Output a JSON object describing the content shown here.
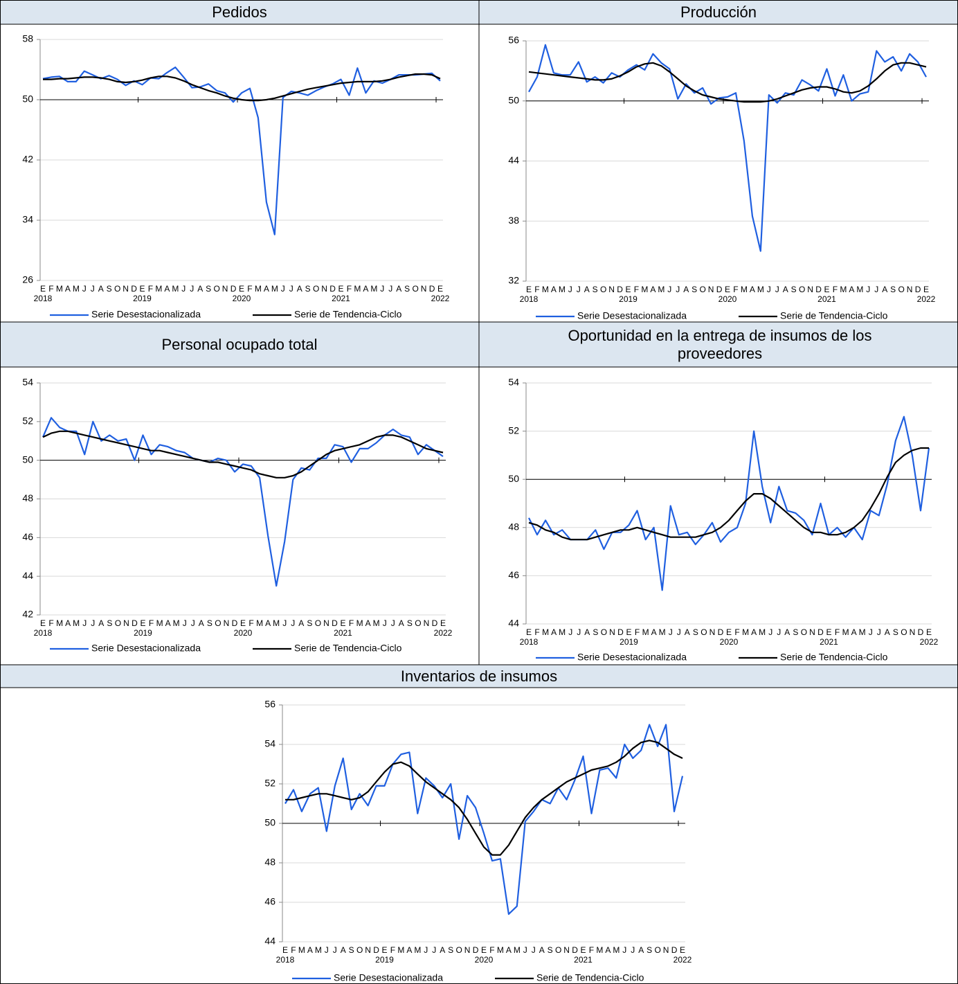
{
  "chart_data": [
    {
      "type": "line",
      "title": "Pedidos",
      "categories": [
        "E",
        "F",
        "M",
        "A",
        "M",
        "J",
        "J",
        "A",
        "S",
        "O",
        "N",
        "D",
        "E",
        "F",
        "M",
        "A",
        "M",
        "J",
        "J",
        "A",
        "S",
        "O",
        "N",
        "D",
        "E",
        "F",
        "M",
        "A",
        "M",
        "J",
        "J",
        "A",
        "S",
        "O",
        "N",
        "D",
        "E",
        "F",
        "M",
        "A",
        "M",
        "J",
        "J",
        "A",
        "S",
        "O",
        "N",
        "D",
        "E"
      ],
      "years": [
        "2018",
        "2019",
        "2020",
        "2021",
        "2022"
      ],
      "ylim": [
        26,
        58
      ],
      "yticks": [
        26,
        34,
        42,
        50,
        58
      ],
      "axis_at": 50,
      "grid": true,
      "series": [
        {
          "name": "Serie Desestacionalizada",
          "color": "#1f5fe0",
          "values": [
            52.8,
            53.0,
            53.1,
            52.4,
            52.4,
            53.8,
            53.3,
            52.8,
            53.2,
            52.7,
            51.9,
            52.5,
            52.0,
            52.9,
            52.8,
            53.6,
            54.3,
            53.0,
            51.6,
            51.7,
            52.1,
            51.2,
            50.9,
            49.7,
            50.9,
            51.5,
            47.6,
            36.4,
            32.1,
            50.3,
            51.1,
            50.9,
            50.6,
            51.2,
            51.7,
            52.1,
            52.7,
            50.6,
            54.2,
            50.9,
            52.5,
            52.2,
            52.7,
            53.3,
            53.3,
            53.3,
            53.4,
            53.5,
            52.5
          ]
        },
        {
          "name": "Serie de Tendencia-Ciclo",
          "color": "#000000",
          "values": [
            52.7,
            52.7,
            52.8,
            52.8,
            52.9,
            53.0,
            53.0,
            52.9,
            52.7,
            52.4,
            52.3,
            52.4,
            52.6,
            52.9,
            53.1,
            53.1,
            52.9,
            52.5,
            52.0,
            51.6,
            51.2,
            50.9,
            50.5,
            50.2,
            50.0,
            49.9,
            49.9,
            50.0,
            50.2,
            50.5,
            50.8,
            51.1,
            51.4,
            51.6,
            51.8,
            52.0,
            52.2,
            52.3,
            52.4,
            52.4,
            52.4,
            52.5,
            52.7,
            53.0,
            53.2,
            53.4,
            53.4,
            53.3,
            52.8
          ]
        }
      ]
    },
    {
      "type": "line",
      "title": "Producción",
      "categories": [
        "E",
        "F",
        "M",
        "A",
        "M",
        "J",
        "J",
        "A",
        "S",
        "O",
        "N",
        "D",
        "E",
        "F",
        "M",
        "A",
        "M",
        "J",
        "J",
        "A",
        "S",
        "O",
        "N",
        "D",
        "E",
        "F",
        "M",
        "A",
        "M",
        "J",
        "J",
        "A",
        "S",
        "O",
        "N",
        "D",
        "E",
        "F",
        "M",
        "A",
        "M",
        "J",
        "J",
        "A",
        "S",
        "O",
        "N",
        "D",
        "E"
      ],
      "years": [
        "2018",
        "2019",
        "2020",
        "2021",
        "2022"
      ],
      "ylim": [
        32,
        56
      ],
      "yticks": [
        32,
        38,
        44,
        50,
        56
      ],
      "axis_at": 50,
      "grid": true,
      "series": [
        {
          "name": "Serie Desestacionalizada",
          "color": "#1f5fe0",
          "values": [
            50.9,
            52.4,
            55.6,
            52.8,
            52.6,
            52.6,
            53.9,
            51.9,
            52.4,
            51.8,
            52.8,
            52.4,
            53.1,
            53.6,
            53.1,
            54.7,
            53.8,
            53.2,
            50.2,
            51.7,
            50.8,
            51.3,
            49.7,
            50.3,
            50.4,
            50.8,
            46.0,
            38.5,
            35.0,
            50.6,
            49.8,
            50.8,
            50.6,
            52.1,
            51.6,
            51.0,
            53.2,
            50.5,
            52.6,
            50.0,
            50.7,
            50.9,
            55.0,
            53.9,
            54.4,
            53.0,
            54.7,
            53.9,
            52.4
          ]
        },
        {
          "name": "Serie de Tendencia-Ciclo",
          "color": "#000000",
          "values": [
            52.9,
            52.8,
            52.7,
            52.6,
            52.5,
            52.4,
            52.3,
            52.2,
            52.1,
            52.1,
            52.2,
            52.5,
            52.9,
            53.4,
            53.7,
            53.8,
            53.5,
            52.9,
            52.2,
            51.5,
            51.0,
            50.6,
            50.4,
            50.2,
            50.1,
            50.0,
            49.9,
            49.9,
            49.9,
            50.0,
            50.2,
            50.5,
            50.8,
            51.1,
            51.3,
            51.4,
            51.4,
            51.2,
            50.9,
            50.8,
            51.0,
            51.5,
            52.2,
            53.0,
            53.6,
            53.8,
            53.8,
            53.6,
            53.4
          ]
        }
      ]
    },
    {
      "type": "line",
      "title": "Personal ocupado total",
      "categories": [
        "E",
        "F",
        "M",
        "A",
        "M",
        "J",
        "J",
        "A",
        "S",
        "O",
        "N",
        "D",
        "E",
        "F",
        "M",
        "A",
        "M",
        "J",
        "J",
        "A",
        "S",
        "O",
        "N",
        "D",
        "E",
        "F",
        "M",
        "A",
        "M",
        "J",
        "J",
        "A",
        "S",
        "O",
        "N",
        "D",
        "E",
        "F",
        "M",
        "A",
        "M",
        "J",
        "J",
        "A",
        "S",
        "O",
        "N",
        "D",
        "E"
      ],
      "years": [
        "2018",
        "2019",
        "2020",
        "2021",
        "2022"
      ],
      "ylim": [
        42,
        54
      ],
      "yticks": [
        42,
        44,
        46,
        48,
        50,
        52,
        54
      ],
      "axis_at": 50,
      "grid": true,
      "series": [
        {
          "name": "Serie Desestacionalizada",
          "color": "#1f5fe0",
          "values": [
            51.2,
            52.2,
            51.7,
            51.5,
            51.5,
            50.3,
            52.0,
            51.0,
            51.3,
            51.0,
            51.1,
            50.0,
            51.3,
            50.3,
            50.8,
            50.7,
            50.5,
            50.4,
            50.1,
            50.0,
            49.9,
            50.1,
            50.0,
            49.4,
            49.8,
            49.7,
            49.1,
            46.1,
            43.5,
            45.8,
            49.0,
            49.6,
            49.5,
            50.1,
            50.1,
            50.8,
            50.7,
            49.9,
            50.6,
            50.6,
            50.9,
            51.3,
            51.6,
            51.3,
            51.2,
            50.3,
            50.8,
            50.5,
            50.2
          ]
        },
        {
          "name": "Serie de Tendencia-Ciclo",
          "color": "#000000",
          "values": [
            51.2,
            51.4,
            51.5,
            51.5,
            51.4,
            51.3,
            51.2,
            51.1,
            51.0,
            50.9,
            50.8,
            50.7,
            50.6,
            50.5,
            50.5,
            50.4,
            50.3,
            50.2,
            50.1,
            50.0,
            49.9,
            49.9,
            49.8,
            49.7,
            49.6,
            49.5,
            49.3,
            49.2,
            49.1,
            49.1,
            49.2,
            49.4,
            49.7,
            50.0,
            50.3,
            50.5,
            50.6,
            50.7,
            50.8,
            51.0,
            51.2,
            51.3,
            51.3,
            51.2,
            51.0,
            50.8,
            50.6,
            50.5,
            50.4
          ]
        }
      ]
    },
    {
      "type": "line",
      "title": "Oportunidad en la entrega de insumos de los proveedores",
      "categories": [
        "E",
        "F",
        "M",
        "A",
        "M",
        "J",
        "J",
        "A",
        "S",
        "O",
        "N",
        "D",
        "E",
        "F",
        "M",
        "A",
        "M",
        "J",
        "J",
        "A",
        "S",
        "O",
        "N",
        "D",
        "E",
        "F",
        "M",
        "A",
        "M",
        "J",
        "J",
        "A",
        "S",
        "O",
        "N",
        "D",
        "E",
        "F",
        "M",
        "A",
        "M",
        "J",
        "J",
        "A",
        "S",
        "O",
        "N",
        "D",
        "E"
      ],
      "years": [
        "2018",
        "2019",
        "2020",
        "2021",
        "2022"
      ],
      "ylim": [
        44,
        54
      ],
      "yticks": [
        44,
        46,
        48,
        50,
        52,
        54
      ],
      "axis_at": 50,
      "grid": true,
      "series": [
        {
          "name": "Serie Desestacionalizada",
          "color": "#1f5fe0",
          "values": [
            48.4,
            47.7,
            48.3,
            47.7,
            47.9,
            47.5,
            47.5,
            47.5,
            47.9,
            47.1,
            47.8,
            47.8,
            48.1,
            48.7,
            47.5,
            48.0,
            45.4,
            48.9,
            47.7,
            47.8,
            47.3,
            47.7,
            48.2,
            47.4,
            47.8,
            48.0,
            49.0,
            52.0,
            49.7,
            48.2,
            49.7,
            48.7,
            48.6,
            48.3,
            47.7,
            49.0,
            47.7,
            48.0,
            47.6,
            48.0,
            47.5,
            48.7,
            48.5,
            49.8,
            51.6,
            52.6,
            51.0,
            48.7,
            51.3
          ]
        },
        {
          "name": "Serie de Tendencia-Ciclo",
          "color": "#000000",
          "values": [
            48.2,
            48.1,
            47.9,
            47.8,
            47.6,
            47.5,
            47.5,
            47.5,
            47.6,
            47.7,
            47.8,
            47.9,
            47.9,
            48.0,
            47.9,
            47.8,
            47.7,
            47.6,
            47.6,
            47.6,
            47.6,
            47.7,
            47.8,
            48.0,
            48.3,
            48.7,
            49.1,
            49.4,
            49.4,
            49.2,
            48.9,
            48.6,
            48.3,
            48.0,
            47.8,
            47.8,
            47.7,
            47.7,
            47.8,
            48.0,
            48.3,
            48.8,
            49.4,
            50.1,
            50.7,
            51.0,
            51.2,
            51.3,
            51.3
          ]
        }
      ]
    },
    {
      "type": "line",
      "title": "Inventarios de insumos",
      "categories": [
        "E",
        "F",
        "M",
        "A",
        "M",
        "J",
        "J",
        "A",
        "S",
        "O",
        "N",
        "D",
        "E",
        "F",
        "M",
        "A",
        "M",
        "J",
        "J",
        "A",
        "S",
        "O",
        "N",
        "D",
        "E",
        "F",
        "M",
        "A",
        "M",
        "J",
        "J",
        "A",
        "S",
        "O",
        "N",
        "D",
        "E",
        "F",
        "M",
        "A",
        "M",
        "J",
        "J",
        "A",
        "S",
        "O",
        "N",
        "D",
        "E"
      ],
      "years": [
        "2018",
        "2019",
        "2020",
        "2021",
        "2022"
      ],
      "ylim": [
        44,
        56
      ],
      "yticks": [
        44,
        46,
        48,
        50,
        52,
        54,
        56
      ],
      "axis_at": 50,
      "grid": true,
      "series": [
        {
          "name": "Serie Desestacionalizada",
          "color": "#1f5fe0",
          "values": [
            51.0,
            51.7,
            50.6,
            51.5,
            51.8,
            49.6,
            51.9,
            53.3,
            50.7,
            51.5,
            50.9,
            51.9,
            51.9,
            53.0,
            53.5,
            53.6,
            50.5,
            52.3,
            51.9,
            51.3,
            52.0,
            49.2,
            51.4,
            50.8,
            49.5,
            48.1,
            48.2,
            45.4,
            45.8,
            50.1,
            50.6,
            51.2,
            51.0,
            51.8,
            51.2,
            52.2,
            53.4,
            50.5,
            52.7,
            52.8,
            52.3,
            54.0,
            53.3,
            53.7,
            55.0,
            53.9,
            55.0,
            50.6,
            52.4
          ]
        },
        {
          "name": "Serie de Tendencia-Ciclo",
          "color": "#000000",
          "values": [
            51.2,
            51.2,
            51.3,
            51.4,
            51.5,
            51.5,
            51.4,
            51.3,
            51.2,
            51.3,
            51.6,
            52.1,
            52.6,
            53.0,
            53.1,
            52.9,
            52.5,
            52.1,
            51.8,
            51.5,
            51.2,
            50.8,
            50.2,
            49.5,
            48.8,
            48.4,
            48.4,
            48.9,
            49.6,
            50.3,
            50.8,
            51.2,
            51.5,
            51.8,
            52.1,
            52.3,
            52.5,
            52.7,
            52.8,
            52.9,
            53.1,
            53.4,
            53.8,
            54.1,
            54.2,
            54.1,
            53.8,
            53.5,
            53.3
          ]
        }
      ]
    }
  ]
}
